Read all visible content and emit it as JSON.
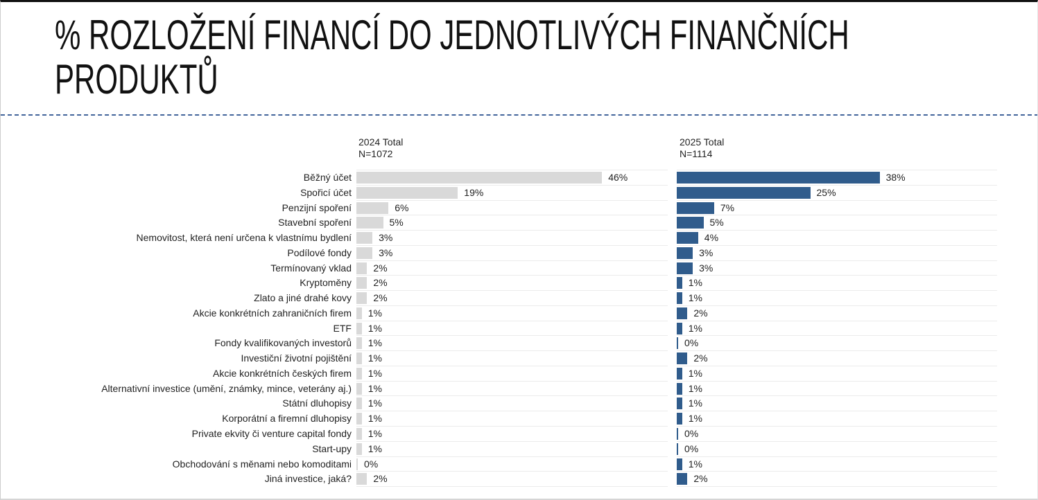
{
  "page": {
    "title": "% ROZLOŽENÍ FINANCÍ DO JEDNOTLIVÝCH FINANČNÍCH PRODUKTŮ"
  },
  "chart_data": {
    "type": "bar",
    "orientation": "horizontal",
    "value_suffix": "%",
    "axis_max_percent": 58,
    "grid": "light row separator lines under each bar row, no visible x axis",
    "legend_position": "column headers above each bar column",
    "categories": [
      "Běžný účet",
      "Spořicí účet",
      "Penzijní spoření",
      "Stavební spoření",
      "Nemovitost, která není určena k vlastnímu bydlení",
      "Podílové fondy",
      "Termínovaný vklad",
      "Kryptoměny",
      "Zlato a jiné drahé kovy",
      "Akcie konkrétních zahraničních firem",
      "ETF",
      "Fondy kvalifikovaných investorů",
      "Investiční životní pojištění",
      "Akcie konkrétních českých firem",
      "Alternativní investice (umění, známky, mince, veterány aj.)",
      "Státní dluhopisy",
      "Korporátní a firemní dluhopisy",
      "Private ekvity či venture capital fondy",
      "Start-upy",
      "Obchodování s měnami nebo komoditami",
      "Jiná investice, jaká?"
    ],
    "series": [
      {
        "name": "2024 Total",
        "sample_label": "N=1072",
        "color": "#d9d9d9",
        "values": [
          46,
          19,
          6,
          5,
          3,
          3,
          2,
          2,
          2,
          1,
          1,
          1,
          1,
          1,
          1,
          1,
          1,
          1,
          1,
          0,
          2
        ]
      },
      {
        "name": "2025 Total",
        "sample_label": "N=1114",
        "color": "#305c8c",
        "values": [
          38,
          25,
          7,
          5,
          4,
          3,
          3,
          1,
          1,
          2,
          1,
          0,
          2,
          1,
          1,
          1,
          1,
          0,
          0,
          1,
          2
        ]
      }
    ],
    "colors": {
      "divider_dashed_line": "#41639a",
      "row_separator_line": "#ebebeb",
      "text": "#1f1f1f",
      "bar_2024": "#d9d9d9",
      "bar_2025": "#305c8c"
    }
  }
}
